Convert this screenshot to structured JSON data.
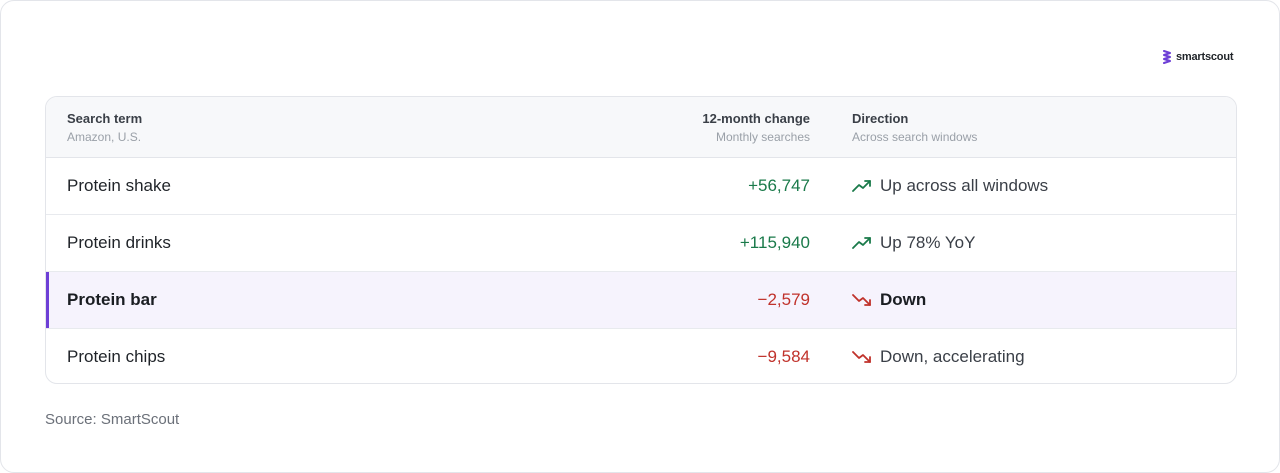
{
  "brand": {
    "name": "smartscout",
    "logo_icon": "smartscout-logo-icon",
    "color": "#6d3fd6"
  },
  "table": {
    "headers": {
      "term": {
        "title": "Search term",
        "sub": "Amazon, U.S."
      },
      "change": {
        "title": "12-month change",
        "sub": "Monthly searches"
      },
      "direction": {
        "title": "Direction",
        "sub": "Across search windows"
      }
    },
    "rows": [
      {
        "term": "Protein shake",
        "change": "+56,747",
        "trend": "up",
        "direction": "Up across all windows",
        "highlighted": false
      },
      {
        "term": "Protein drinks",
        "change": "+115,940",
        "trend": "up",
        "direction": "Up 78% YoY",
        "highlighted": false
      },
      {
        "term": "Protein bar",
        "change": "−2,579",
        "trend": "down",
        "direction": "Down",
        "highlighted": true
      },
      {
        "term": "Protein chips",
        "change": "−9,584",
        "trend": "down",
        "direction": "Down, accelerating",
        "highlighted": false
      }
    ]
  },
  "colors": {
    "positive": "#1a7a4a",
    "negative": "#c0322b",
    "highlight_accent": "#6d3fd6",
    "highlight_bg": "#f6f3fd"
  },
  "icons": {
    "up": "trending-up-icon",
    "down": "trending-down-icon"
  },
  "source": "Source: SmartScout"
}
